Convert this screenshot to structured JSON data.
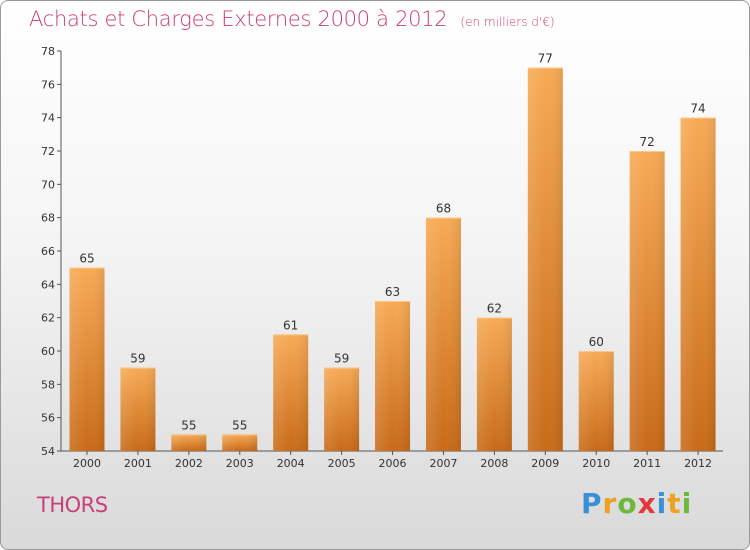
{
  "header": {
    "title": "Achats et Charges Externes 2000 à 2012",
    "unit": "(en milliers d'€)"
  },
  "footer": {
    "place": "THORS",
    "logo": [
      "P",
      "r",
      "o",
      "x",
      "i",
      "t",
      "i"
    ]
  },
  "colors": {
    "title": "#c8407a",
    "bar_top": "#f7aa55",
    "bar_bottom": "#c86a18"
  },
  "chart_data": {
    "type": "bar",
    "categories": [
      "2000",
      "2001",
      "2002",
      "2003",
      "2004",
      "2005",
      "2006",
      "2007",
      "2008",
      "2009",
      "2010",
      "2011",
      "2012"
    ],
    "values": [
      65,
      59,
      55,
      55,
      61,
      59,
      63,
      68,
      62,
      77,
      60,
      72,
      74
    ],
    "title": "Achats et Charges Externes 2000 à 2012",
    "subtitle": "(en milliers d'€)",
    "xlabel": "",
    "ylabel": "",
    "ylim": [
      54,
      78
    ],
    "yticks": [
      54,
      56,
      58,
      60,
      62,
      64,
      66,
      68,
      70,
      72,
      74,
      76,
      78
    ],
    "grid": false,
    "legend": "none"
  }
}
